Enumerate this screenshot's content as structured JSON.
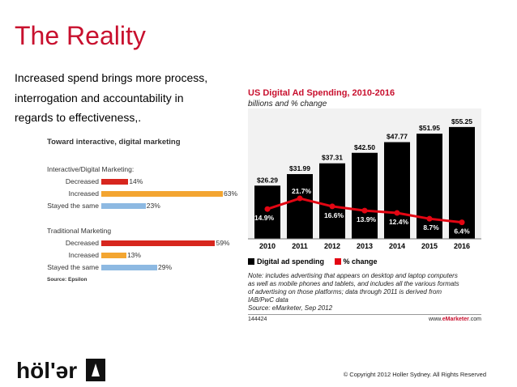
{
  "slide": {
    "title": "The Reality",
    "body_lines": [
      "Increased spend brings more process,",
      "interrogation and accountability in",
      "regards to effectiveness,."
    ],
    "copyright": "© Copyright 2012 Holler Sydney. All Rights Reserved",
    "logo_text": "höl'ər"
  },
  "chart_data": [
    {
      "type": "bar",
      "orientation": "horizontal",
      "title": "Toward interactive, digital marketing",
      "value_max": 63,
      "groups": [
        {
          "name": "Interactive/Digital Marketing:",
          "rows": [
            {
              "label": "Decreased",
              "value": 14,
              "value_label": "14%",
              "color": "#d7261e"
            },
            {
              "label": "Increased",
              "value": 63,
              "value_label": "63%",
              "color": "#f3a531"
            },
            {
              "label": "Stayed the same",
              "value": 23,
              "value_label": "23%",
              "color": "#8db9e2"
            }
          ]
        },
        {
          "name": "Traditional Marketing",
          "rows": [
            {
              "label": "Decreased",
              "value": 59,
              "value_label": "59%",
              "color": "#d7261e"
            },
            {
              "label": "Increased",
              "value": 13,
              "value_label": "13%",
              "color": "#f3a531"
            },
            {
              "label": "Stayed the same",
              "value": 29,
              "value_label": "29%",
              "color": "#8db9e2"
            }
          ]
        }
      ],
      "source": "Source: Epsilon"
    },
    {
      "type": "bar",
      "title": "US Digital Ad Spending, 2010-2016",
      "subtitle": "billions and % change",
      "categories": [
        "2010",
        "2011",
        "2012",
        "2013",
        "2014",
        "2015",
        "2016"
      ],
      "ylim": [
        0,
        60
      ],
      "series": [
        {
          "name": "Digital ad spending",
          "type": "bar",
          "color": "#000000",
          "values": [
            26.29,
            31.99,
            37.31,
            42.5,
            47.77,
            51.95,
            55.25
          ],
          "labels": [
            "$26.29",
            "$31.99",
            "$37.31",
            "$42.50",
            "$47.77",
            "$51.95",
            "$55.25"
          ]
        },
        {
          "name": "% change",
          "type": "line",
          "color": "#e30613",
          "values": [
            14.9,
            21.7,
            16.6,
            13.9,
            12.4,
            8.7,
            6.4
          ],
          "labels": [
            "14.9%",
            "21.7%",
            "16.6%",
            "13.9%",
            "12.4%",
            "8.7%",
            "6.4%"
          ]
        }
      ],
      "note_lines": [
        "Note: includes advertising that appears on desktop and laptop computers",
        "as well as mobile phones and tablets, and includes all the various formats",
        "of advertising on those platforms; data through 2011 is derived from",
        "IAB/PwC data",
        "Source: eMarketer, Sep 2012"
      ],
      "chart_id": "144424",
      "brand": {
        "prefix": "www.",
        "name": "eMarketer",
        "suffix": ".com"
      }
    }
  ]
}
